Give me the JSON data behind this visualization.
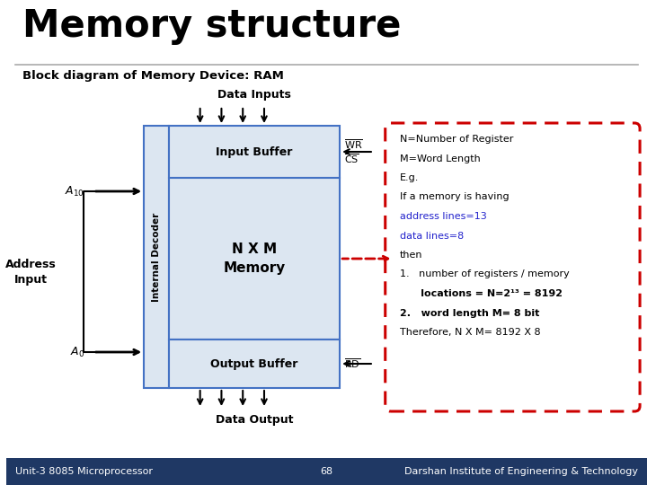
{
  "title": "Memory structure",
  "subtitle": "Block diagram of Memory Device: RAM",
  "bg_color": "#ffffff",
  "title_color": "#000000",
  "subtitle_color": "#000000",
  "box_edge_color": "#4472c4",
  "box_fill_color": "#dce6f1",
  "arrow_color": "#000000",
  "dashed_box_color": "#cc0000",
  "note_lines": [
    {
      "text": "N=Number of Register",
      "color": "#000000",
      "bold": false
    },
    {
      "text": "M=Word Length",
      "color": "#000000",
      "bold": false
    },
    {
      "text": "E.g.",
      "color": "#000000",
      "bold": false
    },
    {
      "text": "If a memory is having",
      "color": "#000000",
      "bold": false
    },
    {
      "text": "address lines=13",
      "color": "#2222cc",
      "bold": false
    },
    {
      "text": "data lines=8",
      "color": "#2222cc",
      "bold": false
    },
    {
      "text": "then",
      "color": "#000000",
      "bold": false
    },
    {
      "text": "1.   number of registers / memory",
      "color": "#000000",
      "bold": false
    },
    {
      "text": "      locations = N=2¹³ = 8192",
      "color": "#000000",
      "bold": true
    },
    {
      "text": "2.   word length M= 8 bit",
      "color": "#000000",
      "bold": true
    },
    {
      "text": "Therefore, N X M= 8192 X 8",
      "color": "#000000",
      "bold": false
    }
  ],
  "footer_left": "Unit-3 8085 Microprocessor",
  "footer_center": "68",
  "footer_right": "Darshan Institute of Engineering & Technology",
  "footer_bg": "#1f3864",
  "footer_color": "#ffffff"
}
